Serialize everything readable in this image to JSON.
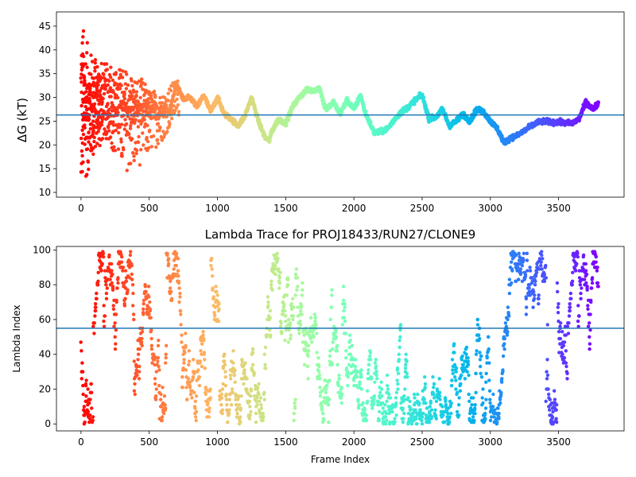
{
  "figure": {
    "background": "#ffffff",
    "colormap": "rainbow",
    "refline_color": "#1f77b4"
  },
  "chart_data": [
    {
      "type": "scatter",
      "title": "",
      "xlabel": "",
      "ylabel": "ΔG (kT)",
      "xlim": [
        -180,
        3980
      ],
      "ylim": [
        9,
        48
      ],
      "xticks": [
        0,
        500,
        1000,
        1500,
        2000,
        2500,
        3000,
        3500
      ],
      "yticks": [
        10,
        15,
        20,
        25,
        30,
        35,
        40,
        45
      ],
      "reference_line": 26.3,
      "color_encoding": "frame index mapped to rainbow colormap (early frames red, late frames violet)",
      "description": "Running free-energy estimate; noisy early frames converge to a smooth trace",
      "series": [
        {
          "trace_keypoints": {
            "x": [
              0,
              120,
              250,
              350,
              450,
              550,
              650,
              700,
              750,
              800,
              850,
              900,
              950,
              1000,
              1050,
              1100,
              1150,
              1200,
              1250,
              1300,
              1350,
              1380,
              1400,
              1450,
              1500,
              1550,
              1600,
              1650,
              1700,
              1750,
              1780,
              1800,
              1850,
              1900,
              1950,
              2000,
              2050,
              2080,
              2150,
              2200,
              2250,
              2300,
              2350,
              2400,
              2450,
              2500,
              2550,
              2600,
              2650,
              2700,
              2750,
              2800,
              2850,
              2900,
              2950,
              3000,
              3050,
              3100,
              3150,
              3200,
              3250,
              3300,
              3350,
              3400,
              3450,
              3500,
              3550,
              3600,
              3650,
              3700,
              3720,
              3750,
              3790
            ],
            "y": [
              26.0,
              27.5,
              29.0,
              28.0,
              27.5,
              27.5,
              27.0,
              33.0,
              29.5,
              30.0,
              28.0,
              30.5,
              27.0,
              30.0,
              26.5,
              25.5,
              24.0,
              26.0,
              30.0,
              25.0,
              21.5,
              21.0,
              23.0,
              25.5,
              24.5,
              28.0,
              30.0,
              31.5,
              31.5,
              32.0,
              28.5,
              27.5,
              29.0,
              26.5,
              29.5,
              27.5,
              30.5,
              27.0,
              22.5,
              22.8,
              23.5,
              25.5,
              27.0,
              28.0,
              29.5,
              30.5,
              25.5,
              25.8,
              27.5,
              24.0,
              25.0,
              26.5,
              25.0,
              27.5,
              27.0,
              25.0,
              23.5,
              20.5,
              21.5,
              22.0,
              23.0,
              24.0,
              24.8,
              25.0,
              24.8,
              24.8,
              24.6,
              24.6,
              25.5,
              29.0,
              28.5,
              27.5,
              28.7
            ]
          },
          "scatter_ranges": {
            "x": [
              0,
              60,
              120,
              200,
              300,
              400,
              500,
              600,
              700
            ],
            "y_low": [
              9.5,
              15.0,
              20.0,
              21.0,
              14.5,
              14.5,
              18.0,
              21.0,
              26.0
            ],
            "y_high": [
              47.0,
              40.0,
              38.0,
              37.0,
              36.5,
              35.5,
              32.0,
              31.0,
              34.0
            ]
          }
        }
      ]
    },
    {
      "type": "scatter",
      "title": "Lambda Trace for PROJ18433/RUN27/CLONE9",
      "xlabel": "Frame Index",
      "ylabel": "Lambda Index",
      "xlim": [
        -180,
        3980
      ],
      "ylim": [
        -4,
        102
      ],
      "xticks": [
        0,
        500,
        1000,
        1500,
        2000,
        2500,
        3000,
        3500
      ],
      "yticks": [
        0,
        20,
        40,
        60,
        80,
        100
      ],
      "reference_line": 55,
      "color_encoding": "frame index mapped to rainbow colormap (early frames red, late frames violet)",
      "description": "Lambda index visited by each frame, spanning the full 0–99 range",
      "series": [
        {
          "y_range": [
            0,
            99
          ],
          "frame_range": [
            0,
            3790
          ]
        }
      ]
    }
  ]
}
